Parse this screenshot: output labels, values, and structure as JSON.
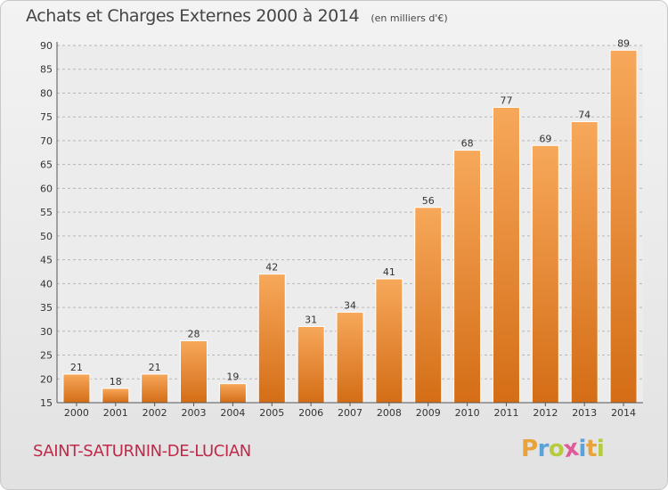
{
  "title": "Achats et Charges Externes 2000 à 2014",
  "subtitle": "(en milliers d'€)",
  "commune": "SAINT-SATURNIN-DE-LUCIAN",
  "logo": {
    "letters": [
      "P",
      "r",
      "o",
      "x",
      "i",
      "t",
      "i"
    ],
    "colors": [
      "#e8a33a",
      "#5aa3d8",
      "#b6cc3f",
      "#e05a9a",
      "#5aa3d8",
      "#e8a33a",
      "#b6cc3f"
    ]
  },
  "colors": {
    "bar_light": "#f7a85a",
    "bar_dark": "#d46d16",
    "axis": "#555555",
    "grid": "#b5b5b5",
    "title": "#454545",
    "commune": "#c0294a"
  },
  "chart_data": {
    "type": "bar",
    "categories": [
      "2000",
      "2001",
      "2002",
      "2003",
      "2004",
      "2005",
      "2006",
      "2007",
      "2008",
      "2009",
      "2010",
      "2011",
      "2012",
      "2013",
      "2014"
    ],
    "values": [
      21,
      18,
      21,
      28,
      19,
      42,
      31,
      34,
      41,
      56,
      68,
      77,
      69,
      74,
      89
    ],
    "ylim": [
      15,
      90
    ],
    "yticks": [
      15,
      20,
      25,
      30,
      35,
      40,
      45,
      50,
      55,
      60,
      65,
      70,
      75,
      80,
      85,
      90
    ],
    "grid": true,
    "data_labels": true
  }
}
